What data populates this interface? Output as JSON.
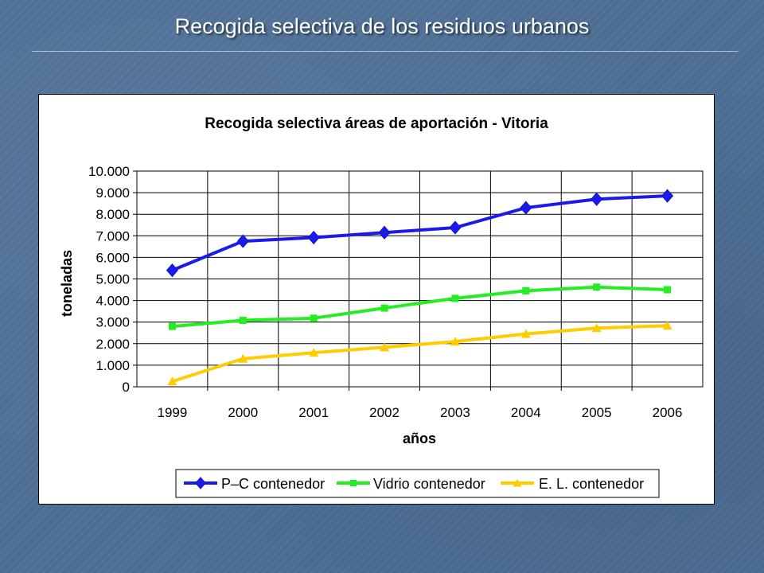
{
  "slide": {
    "title": "Recogida selectiva de los residuos urbanos"
  },
  "chart_data": {
    "type": "line",
    "title": "Recogida selectiva áreas de aportación - Vitoria",
    "xlabel": "años",
    "ylabel": "toneladas",
    "categories": [
      "1999",
      "2000",
      "2001",
      "2002",
      "2003",
      "2004",
      "2005",
      "2006"
    ],
    "ylim": [
      0,
      10000
    ],
    "yticks": [
      0,
      1000,
      2000,
      3000,
      4000,
      5000,
      6000,
      7000,
      8000,
      9000,
      10000
    ],
    "ytick_labels": [
      "0",
      "1.000",
      "2.000",
      "3.000",
      "4.000",
      "5.000",
      "6.000",
      "7.000",
      "8.000",
      "9.000",
      "10.000"
    ],
    "grid": "vertical and horizontal",
    "legend_position": "bottom",
    "series": [
      {
        "name": "P–C contenedor",
        "color": "#1a1aea",
        "marker": "diamond",
        "values": [
          5400,
          6750,
          6920,
          7150,
          7380,
          8300,
          8700,
          8850
        ]
      },
      {
        "name": "Vidrio  contenedor",
        "color": "#22ee22",
        "marker": "square",
        "values": [
          2800,
          3080,
          3180,
          3650,
          4100,
          4450,
          4620,
          4500
        ]
      },
      {
        "name": "E. L. contenedor",
        "color": "#ffcc00",
        "marker": "triangle",
        "values": [
          250,
          1300,
          1580,
          1830,
          2100,
          2450,
          2720,
          2830
        ]
      }
    ]
  }
}
